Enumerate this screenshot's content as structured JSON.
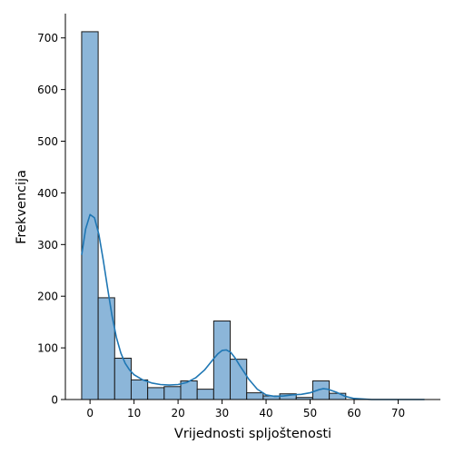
{
  "chart_data": {
    "type": "bar",
    "subtype": "histogram-with-kde",
    "title": "",
    "xlabel": "Vrijednosti spljoštenosti",
    "ylabel": "Frekvencija",
    "xlim": [
      -5.6,
      79.6
    ],
    "ylim": [
      0,
      747
    ],
    "xticks": [
      0,
      10,
      20,
      30,
      40,
      50,
      60,
      70
    ],
    "yticks": [
      0,
      100,
      200,
      300,
      400,
      500,
      600,
      700
    ],
    "bin_width": 3.75,
    "bin_start": -1.9,
    "bins": [
      {
        "x0": -1.9,
        "x1": 1.85,
        "count": 712
      },
      {
        "x0": 1.85,
        "x1": 5.6,
        "count": 197
      },
      {
        "x0": 5.6,
        "x1": 9.35,
        "count": 80
      },
      {
        "x0": 9.35,
        "x1": 13.1,
        "count": 38
      },
      {
        "x0": 13.1,
        "x1": 16.85,
        "count": 23
      },
      {
        "x0": 16.85,
        "x1": 20.6,
        "count": 25
      },
      {
        "x0": 20.6,
        "x1": 24.35,
        "count": 36
      },
      {
        "x0": 24.35,
        "x1": 28.1,
        "count": 20
      },
      {
        "x0": 28.1,
        "x1": 31.85,
        "count": 152
      },
      {
        "x0": 31.85,
        "x1": 35.6,
        "count": 78
      },
      {
        "x0": 35.6,
        "x1": 39.35,
        "count": 13
      },
      {
        "x0": 39.35,
        "x1": 43.1,
        "count": 7
      },
      {
        "x0": 43.1,
        "x1": 46.85,
        "count": 11
      },
      {
        "x0": 46.85,
        "x1": 50.6,
        "count": 4
      },
      {
        "x0": 50.6,
        "x1": 54.35,
        "count": 36
      },
      {
        "x0": 54.35,
        "x1": 58.1,
        "count": 12
      }
    ],
    "kde": {
      "x": [
        -1.9,
        -1,
        0,
        1,
        2,
        3,
        4,
        5,
        6,
        7,
        8,
        9,
        10,
        12,
        14,
        16,
        18,
        20,
        22,
        24,
        26,
        28,
        29,
        30,
        31,
        32,
        33,
        34,
        36,
        38,
        40,
        42,
        44,
        46,
        48,
        50,
        52,
        53,
        54,
        56,
        58,
        60,
        62,
        64,
        68,
        72,
        76
      ],
      "y": [
        280,
        330,
        358,
        352,
        320,
        270,
        215,
        162,
        120,
        90,
        70,
        57,
        48,
        38,
        32,
        29,
        28,
        29,
        33,
        42,
        57,
        78,
        88,
        95,
        96,
        91,
        80,
        66,
        40,
        20,
        9,
        6,
        7,
        9,
        10,
        13,
        19,
        21,
        20,
        14,
        6,
        2,
        1,
        0,
        0,
        0,
        0
      ]
    },
    "colors": {
      "bar_fill": "#8cb6d9",
      "bar_edge": "#1a1a1a",
      "kde_line": "#1f77b4",
      "axis": "#000000"
    },
    "grid": false,
    "legend": "none"
  }
}
